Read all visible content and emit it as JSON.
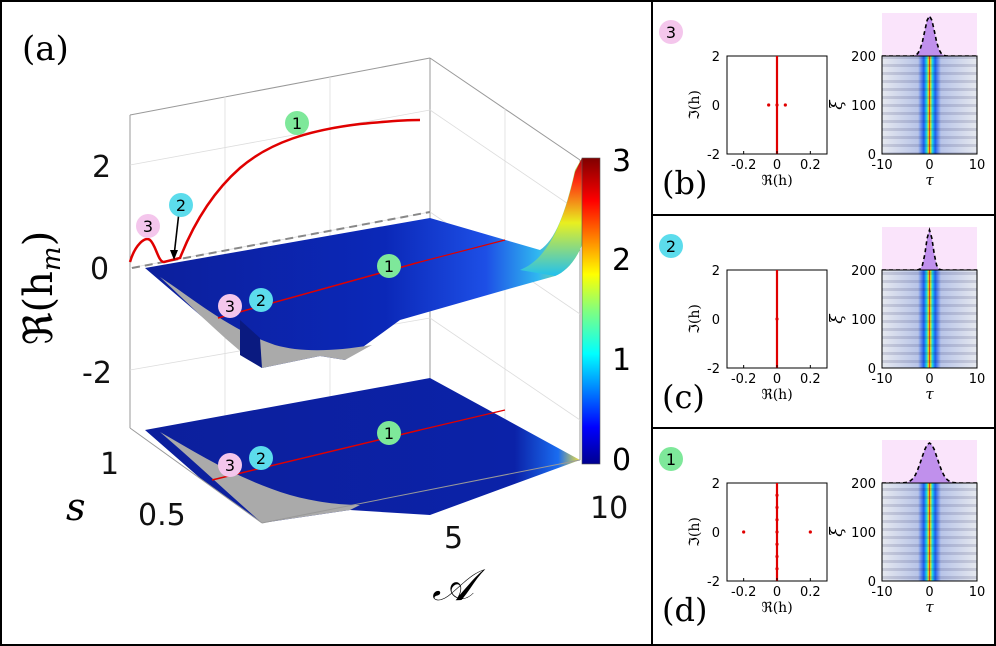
{
  "panels": {
    "a": {
      "label": "(a)",
      "z_ticks": [
        "2",
        "0",
        "-2"
      ],
      "s_ticks": [
        "1",
        "0.5"
      ],
      "A_ticks": [
        "5",
        "10"
      ],
      "z_axis_label": "ℜ(h_m)",
      "z_axis_main": "ℜ(h",
      "z_axis_sub": "m",
      "z_axis_close": ")",
      "s_axis_label": "s",
      "A_axis_label": "𝒜",
      "colorbar_ticks": [
        "3",
        "2",
        "1",
        "0"
      ],
      "markers": [
        "1",
        "2",
        "3",
        "1",
        "3",
        "2",
        "1",
        "3",
        "2"
      ]
    },
    "b": {
      "label": "(b)",
      "marker": "3"
    },
    "c": {
      "label": "(c)",
      "marker": "2"
    },
    "d": {
      "label": "(d)",
      "marker": "1"
    }
  },
  "small_axes": {
    "spectrum_x_ticks": [
      "-0.2",
      "0",
      "0.2"
    ],
    "spectrum_y_ticks": [
      "2",
      "0",
      "-2"
    ],
    "spectrum_xlabel": "ℜ(h)",
    "spectrum_ylabel": "ℑ(h)",
    "prop_x_ticks": [
      "-10",
      "0",
      "10"
    ],
    "prop_y_ticks": [
      "200",
      "100",
      "0"
    ],
    "prop_xlabel": "τ",
    "prop_ylabel": "ξ"
  },
  "colors": {
    "marker_1": "#7ee89a",
    "marker_2": "#5cdcec",
    "marker_3": "#f4c6ec",
    "curve": "#e00000",
    "surface_base": "#0b1e9a",
    "gap": "#aaaaaa"
  },
  "chart_data": [
    {
      "type": "area",
      "panel": "a",
      "xlabel": "𝒜",
      "ylabel": "s",
      "zlabel": "ℜ(h_m)",
      "xlim": [
        0,
        10
      ],
      "ylim": [
        0,
        1
      ],
      "zlim": [
        -3,
        3
      ],
      "colorbar": {
        "ticks": [
          0,
          1,
          2,
          3
        ],
        "range": [
          0,
          3
        ],
        "colormap": "jet"
      },
      "series": [
        {
          "name": "1",
          "x": [
            0.9,
            2,
            3,
            4,
            5,
            6,
            7,
            8,
            9,
            10
          ],
          "values": [
            0.0,
            1.6,
            2.15,
            2.4,
            2.55,
            2.6,
            2.65,
            2.68,
            2.7,
            2.7
          ]
        }
      ]
    },
    {
      "type": "scatter",
      "panel": "b",
      "xlabel": "ℜ(h)",
      "ylabel": "ℑ(h)",
      "xlim": [
        -0.3,
        0.3
      ],
      "ylim": [
        -2,
        2
      ],
      "points": [
        [
          -0.05,
          0
        ],
        [
          0,
          0
        ],
        [
          0.05,
          0
        ]
      ],
      "continuum_x": 0
    },
    {
      "type": "heatmap",
      "panel": "b",
      "xlabel": "τ",
      "ylabel": "ξ",
      "xlim": [
        -10,
        10
      ],
      "ylim": [
        0,
        200
      ]
    },
    {
      "type": "scatter",
      "panel": "c",
      "xlabel": "ℜ(h)",
      "ylabel": "ℑ(h)",
      "xlim": [
        -0.3,
        0.3
      ],
      "ylim": [
        -2,
        2
      ],
      "points": [
        [
          0,
          0
        ]
      ],
      "continuum_x": 0
    },
    {
      "type": "heatmap",
      "panel": "c",
      "xlabel": "τ",
      "ylabel": "ξ",
      "xlim": [
        -10,
        10
      ],
      "ylim": [
        0,
        200
      ]
    },
    {
      "type": "scatter",
      "panel": "d",
      "xlabel": "ℜ(h)",
      "ylabel": "ℑ(h)",
      "xlim": [
        -0.3,
        0.3
      ],
      "ylim": [
        -2,
        2
      ],
      "points": [
        [
          -0.2,
          0
        ],
        [
          0.2,
          0
        ],
        [
          0,
          0
        ],
        [
          0,
          0.5
        ],
        [
          0,
          -0.5
        ],
        [
          0,
          1
        ],
        [
          0,
          -1
        ],
        [
          0,
          1.5
        ],
        [
          0,
          -1.5
        ]
      ],
      "continuum_x": 0
    },
    {
      "type": "heatmap",
      "panel": "d",
      "xlabel": "τ",
      "ylabel": "ξ",
      "xlim": [
        -10,
        10
      ],
      "ylim": [
        0,
        200
      ]
    }
  ]
}
